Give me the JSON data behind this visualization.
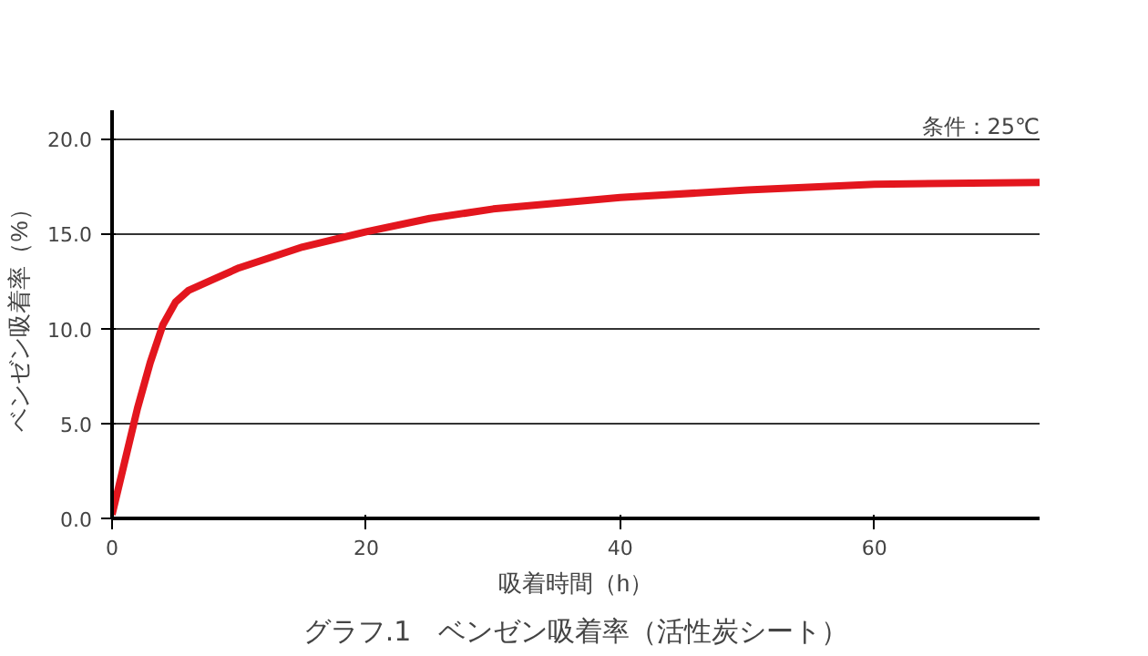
{
  "chart_data": {
    "type": "line",
    "title": "グラフ.1　ベンゼン吸着率（活性炭シート）",
    "xlabel": "吸着時間（h）",
    "ylabel": "ベンゼン吸着率（%）",
    "annotations": [
      "条件：25℃"
    ],
    "x": [
      0,
      1,
      2,
      3,
      4,
      5,
      6,
      8,
      10,
      15,
      20,
      25,
      30,
      40,
      50,
      60,
      73
    ],
    "series": [
      {
        "color": "#e3161e",
        "values": [
          0.2,
          3,
          5.8,
          8.2,
          10.2,
          11.4,
          12,
          12.6,
          13.2,
          14.3,
          15.1,
          15.8,
          16.3,
          16.9,
          17.3,
          17.6,
          17.7
        ]
      }
    ],
    "xlim": [
      0,
      73
    ],
    "ylim": [
      0,
      21.5
    ],
    "xticks": [
      0,
      20,
      40,
      60
    ],
    "yticks": [
      {
        "value": 0,
        "label": "0.0"
      },
      {
        "value": 5,
        "label": "5.0"
      },
      {
        "value": 10,
        "label": "10.0"
      },
      {
        "value": 15,
        "label": "15.0"
      },
      {
        "value": 20,
        "label": "20.0"
      }
    ],
    "grid": "y",
    "marker": "none",
    "line_style": "solid"
  }
}
